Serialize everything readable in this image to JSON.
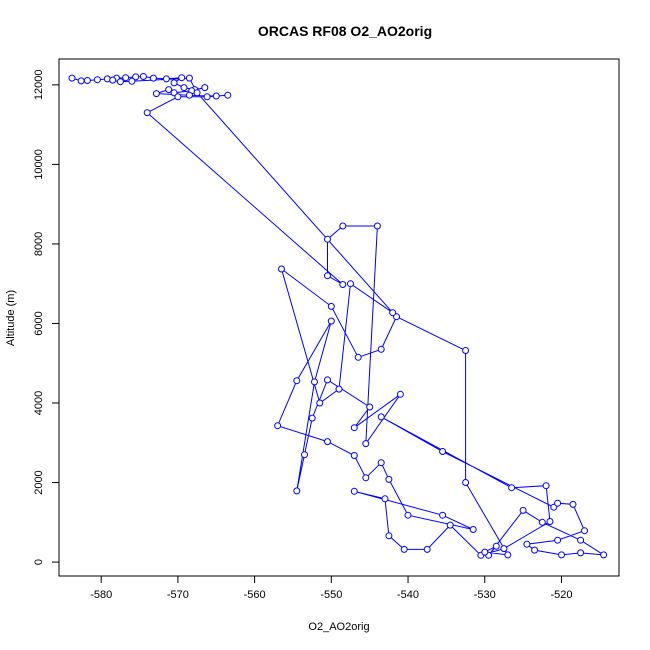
{
  "chart_data": {
    "type": "line",
    "title": "ORCAS RF08 O2_AO2orig",
    "xlabel": "O2_AO2orig",
    "ylabel": "Altitude (m)",
    "xlim": [
      -585.5,
      -512.5
    ],
    "ylim": [
      -350,
      12650
    ],
    "xticks": [
      -580,
      -570,
      -560,
      -550,
      -540,
      -530,
      -520
    ],
    "yticks": [
      0,
      2000,
      4000,
      6000,
      8000,
      10000,
      12000
    ],
    "grid": false,
    "legend": "none",
    "marker": "open-circle",
    "color": "#0000ff",
    "points": [
      [
        -583.8,
        12170
      ],
      [
        -582.6,
        12100
      ],
      [
        -581.8,
        12110
      ],
      [
        -580.5,
        12130
      ],
      [
        -579.2,
        12150
      ],
      [
        -578.0,
        12170
      ],
      [
        -576.8,
        12180
      ],
      [
        -575.5,
        12200
      ],
      [
        -574.5,
        12210
      ],
      [
        -573.2,
        12170
      ],
      [
        -571.5,
        12150
      ],
      [
        -569.5,
        12180
      ],
      [
        -570.5,
        12050
      ],
      [
        -569.2,
        11930
      ],
      [
        -567.8,
        11880
      ],
      [
        -566.5,
        11930
      ],
      [
        -568.2,
        11850
      ],
      [
        -570.5,
        11800
      ],
      [
        -571.2,
        11880
      ],
      [
        -572.8,
        11780
      ],
      [
        -568.5,
        11740
      ],
      [
        -565.0,
        11720
      ],
      [
        -563.5,
        11740
      ],
      [
        -566.2,
        11700
      ],
      [
        -570.0,
        11700
      ],
      [
        -574.0,
        11300
      ],
      [
        -548.5,
        6980
      ],
      [
        -550.5,
        7200
      ],
      [
        -550.5,
        8120
      ],
      [
        -548.5,
        8450
      ],
      [
        -544.0,
        8450
      ],
      [
        -545.5,
        2980
      ],
      [
        -541.0,
        4220
      ],
      [
        -547.0,
        3380
      ],
      [
        -545.0,
        3900
      ],
      [
        -550.5,
        4580
      ],
      [
        -552.5,
        3620
      ],
      [
        -553.5,
        2700
      ],
      [
        -554.5,
        1790
      ],
      [
        -552.2,
        4530
      ],
      [
        -550.0,
        6060
      ],
      [
        -554.5,
        4560
      ],
      [
        -557.0,
        3430
      ],
      [
        -550.5,
        3030
      ],
      [
        -547.0,
        2680
      ],
      [
        -545.5,
        2120
      ],
      [
        -543.5,
        2500
      ],
      [
        -542.5,
        2080
      ],
      [
        -540.0,
        1180
      ],
      [
        -531.5,
        820
      ],
      [
        -535.5,
        1180
      ],
      [
        -547.0,
        1780
      ],
      [
        -543.0,
        1590
      ],
      [
        -542.5,
        660
      ],
      [
        -540.5,
        320
      ],
      [
        -537.5,
        320
      ],
      [
        -534.5,
        930
      ],
      [
        -530.5,
        170
      ],
      [
        -527.5,
        340
      ],
      [
        -521.5,
        1020
      ],
      [
        -522.0,
        1920
      ],
      [
        -526.5,
        1870
      ],
      [
        -543.5,
        3650
      ],
      [
        -535.5,
        2780
      ],
      [
        -521.0,
        1380
      ],
      [
        -520.5,
        1480
      ],
      [
        -518.5,
        1450
      ],
      [
        -517.0,
        790
      ],
      [
        -520.5,
        550
      ],
      [
        -524.5,
        450
      ],
      [
        -523.5,
        300
      ],
      [
        -520.0,
        180
      ],
      [
        -517.5,
        230
      ],
      [
        -514.5,
        180
      ],
      [
        -517.5,
        550
      ],
      [
        -522.5,
        1000
      ],
      [
        -525.0,
        1300
      ],
      [
        -529.5,
        170
      ],
      [
        -528.5,
        400
      ],
      [
        -530.0,
        250
      ],
      [
        -527.0,
        180
      ],
      [
        -532.5,
        2000
      ],
      [
        -532.5,
        5320
      ],
      [
        -541.5,
        6170
      ],
      [
        -543.5,
        5350
      ],
      [
        -546.5,
        5150
      ],
      [
        -550.0,
        6430
      ],
      [
        -556.5,
        7370
      ],
      [
        -551.5,
        4000
      ],
      [
        -549.0,
        4350
      ],
      [
        -547.5,
        7000
      ],
      [
        -542.0,
        6270
      ],
      [
        -567.5,
        11800
      ],
      [
        -568.5,
        12170
      ],
      [
        -576.0,
        12090
      ],
      [
        -577.5,
        12080
      ],
      [
        -578.5,
        12120
      ]
    ]
  }
}
